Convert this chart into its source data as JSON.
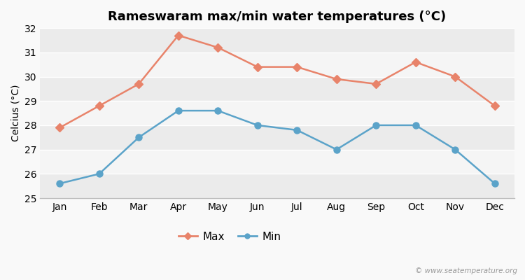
{
  "title": "Rameswaram max/min water temperatures (°C)",
  "ylabel": "Celcius (°C)",
  "months": [
    "Jan",
    "Feb",
    "Mar",
    "Apr",
    "May",
    "Jun",
    "Jul",
    "Aug",
    "Sep",
    "Oct",
    "Nov",
    "Dec"
  ],
  "max_temps": [
    27.9,
    28.8,
    29.7,
    31.7,
    31.2,
    30.4,
    30.4,
    29.9,
    29.7,
    30.6,
    30.0,
    28.8
  ],
  "min_temps": [
    25.6,
    26.0,
    27.5,
    28.6,
    28.6,
    28.0,
    27.8,
    27.0,
    28.0,
    28.0,
    27.0,
    25.6
  ],
  "max_color": "#e8836a",
  "min_color": "#5ba3c9",
  "ylim": [
    25,
    32
  ],
  "yticks": [
    25,
    26,
    27,
    28,
    29,
    30,
    31,
    32
  ],
  "band_colors": [
    "#ebebeb",
    "#f5f5f5"
  ],
  "watermark": "© www.seatemperature.org",
  "title_fontsize": 13,
  "label_fontsize": 10,
  "tick_fontsize": 10,
  "fig_bg": "#f9f9f9"
}
